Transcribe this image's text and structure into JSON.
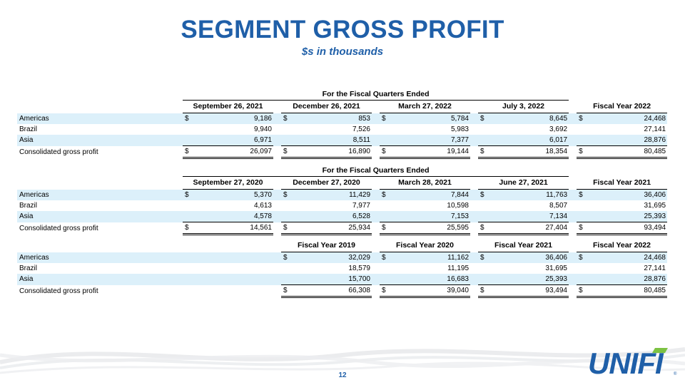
{
  "slide": {
    "title": "SEGMENT GROSS PROFIT",
    "subtitle": "$s in thousands",
    "page_number": "12",
    "logo_text": "UNIFI",
    "brand_color": "#1f5fa8",
    "shade_color": "#dcf0fa"
  },
  "table1": {
    "group_title": "For the Fiscal Quarters Ended",
    "columns": [
      "September 26, 2021",
      "December 26, 2021",
      "March 27, 2022",
      "July 3, 2022",
      "Fiscal Year 2022"
    ],
    "rows": [
      {
        "label": "Americas",
        "values": [
          "9,186",
          "853",
          "5,784",
          "8,645",
          "24,468"
        ],
        "dollar": true
      },
      {
        "label": "Brazil",
        "values": [
          "9,940",
          "7,526",
          "5,983",
          "3,692",
          "27,141"
        ],
        "dollar": false
      },
      {
        "label": "Asia",
        "values": [
          "6,971",
          "8,511",
          "7,377",
          "6,017",
          "28,876"
        ],
        "dollar": false
      },
      {
        "label": "Consolidated gross profit",
        "values": [
          "26,097",
          "16,890",
          "19,144",
          "18,354",
          "80,485"
        ],
        "dollar": true
      }
    ]
  },
  "table2": {
    "group_title": "For the Fiscal Quarters Ended",
    "columns": [
      "September 27, 2020",
      "December 27, 2020",
      "March 28, 2021",
      "June 27, 2021",
      "Fiscal Year 2021"
    ],
    "rows": [
      {
        "label": "Americas",
        "values": [
          "5,370",
          "11,429",
          "7,844",
          "11,763",
          "36,406"
        ],
        "dollar": true
      },
      {
        "label": "Brazil",
        "values": [
          "4,613",
          "7,977",
          "10,598",
          "8,507",
          "31,695"
        ],
        "dollar": false
      },
      {
        "label": "Asia",
        "values": [
          "4,578",
          "6,528",
          "7,153",
          "7,134",
          "25,393"
        ],
        "dollar": false
      },
      {
        "label": "Consolidated gross profit",
        "values": [
          "14,561",
          "25,934",
          "25,595",
          "27,404",
          "93,494"
        ],
        "dollar": true
      }
    ]
  },
  "table3": {
    "columns": [
      "Fiscal Year 2019",
      "Fiscal Year 2020",
      "Fiscal Year 2021",
      "Fiscal Year 2022"
    ],
    "rows": [
      {
        "label": "Americas",
        "values": [
          "32,029",
          "11,162",
          "36,406",
          "24,468"
        ],
        "dollar": true
      },
      {
        "label": "Brazil",
        "values": [
          "18,579",
          "11,195",
          "31,695",
          "27,141"
        ],
        "dollar": false
      },
      {
        "label": "Asia",
        "values": [
          "15,700",
          "16,683",
          "25,393",
          "28,876"
        ],
        "dollar": false
      },
      {
        "label": "Consolidated gross profit",
        "values": [
          "66,308",
          "39,040",
          "93,494",
          "80,485"
        ],
        "dollar": true
      }
    ],
    "currency_symbol": "$"
  }
}
